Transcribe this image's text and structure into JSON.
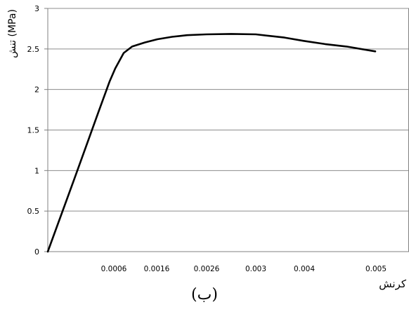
{
  "caption": "(ب)",
  "chart_data": {
    "type": "line",
    "title": "",
    "ylabel": "تنش (MPa)",
    "xlabel": "کرنش",
    "ylim": [
      0,
      3
    ],
    "y_ticks": [
      "0",
      "0.5",
      "1",
      "1.5",
      "2",
      "2.5",
      "3"
    ],
    "x_tick_labels": [
      "0.0006",
      "0.0016",
      "0.0026",
      "0.003",
      "0.004",
      "0.005"
    ],
    "grid": {
      "horizontal": true,
      "vertical": false
    },
    "series": [
      {
        "color": "#000000",
        "x": [
          0,
          0.00025,
          0.00045,
          0.00055,
          0.0006,
          0.0008,
          0.001,
          0.0013,
          0.0016,
          0.0019,
          0.0022,
          0.0026,
          0.0028,
          0.003,
          0.0033,
          0.0036,
          0.004,
          0.0043,
          0.0046,
          0.005
        ],
        "y": [
          0,
          0.95,
          1.72,
          2.1,
          2.26,
          2.45,
          2.53,
          2.58,
          2.62,
          2.65,
          2.67,
          2.68,
          2.685,
          2.68,
          2.66,
          2.64,
          2.6,
          2.56,
          2.53,
          2.47
        ]
      }
    ]
  }
}
